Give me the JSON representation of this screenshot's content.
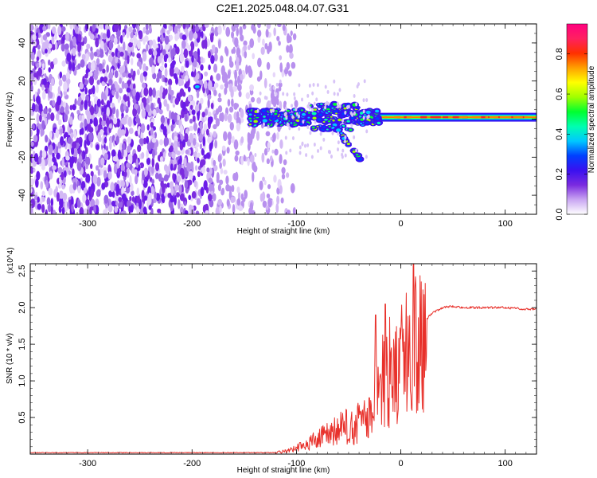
{
  "title": "C2E1.2025.048.04.07.G31",
  "chart_data": [
    {
      "type": "heatmap",
      "xlabel": "Height of straight line (km)",
      "ylabel": "Frequency (Hz)",
      "xlim": [
        -355,
        130
      ],
      "ylim": [
        -50,
        50
      ],
      "x_ticks": [
        "-300",
        "-200",
        "-100",
        "0",
        "100"
      ],
      "x_tick_values": [
        -300,
        -200,
        -100,
        0,
        100
      ],
      "y_ticks": [
        "-40",
        "-20",
        "0",
        "20",
        "40"
      ],
      "y_tick_values": [
        -40,
        -20,
        0,
        20,
        40
      ],
      "colorbar": {
        "label": "Normalized spectral amplitude",
        "range": [
          0,
          0.95
        ],
        "ticks": [
          "0.0",
          "0.2",
          "0.4",
          "0.6",
          "0.8"
        ],
        "tick_values": [
          0,
          0.2,
          0.4,
          0.6,
          0.8
        ],
        "colors": [
          "#ffffff",
          "#c9a6f2",
          "#7b2be0",
          "#3a10f0",
          "#0040ff",
          "#00c8ff",
          "#00ffb0",
          "#00ff30",
          "#a0ff00",
          "#ffff00",
          "#ffa000",
          "#ff3000",
          "#ff2060",
          "#ff0080"
        ]
      },
      "features": {
        "noise_region_x": [
          -355,
          -140
        ],
        "carrier_frequency_hz": 1,
        "carrier_x": [
          -140,
          130
        ],
        "spot_hz": 17,
        "spot_x": -195
      }
    },
    {
      "type": "line",
      "xlabel": "Height of straight line (km)",
      "ylabel": "SNR (10 * v/v)",
      "scale_note": "(x10^4)",
      "xlim": [
        -355,
        130
      ],
      "ylim": [
        0,
        2.6
      ],
      "x_ticks": [
        "-300",
        "-200",
        "-100",
        "0",
        "100"
      ],
      "x_tick_values": [
        -300,
        -200,
        -100,
        0,
        100
      ],
      "y_ticks": [
        "0.5",
        "1.0",
        "1.5",
        "2.0",
        "2.5"
      ],
      "y_tick_values": [
        0.5,
        1.0,
        1.5,
        2.0,
        2.5
      ],
      "color": "#e8302a",
      "series": [
        {
          "x": [
            -355,
            -300,
            -250,
            -200,
            -150,
            -120,
            -110,
            -100,
            -90,
            -80,
            -70,
            -60,
            -50,
            -40,
            -30,
            -25,
            -20,
            -15,
            -10,
            -5,
            0,
            5,
            10,
            15,
            20,
            25,
            30,
            40,
            50,
            60,
            70,
            80,
            90,
            100,
            110,
            120,
            130
          ],
          "values": [
            0.02,
            0.02,
            0.02,
            0.02,
            0.02,
            0.02,
            0.04,
            0.08,
            0.14,
            0.2,
            0.26,
            0.33,
            0.38,
            0.42,
            0.5,
            0.65,
            0.9,
            1.05,
            1.15,
            1.2,
            1.25,
            1.3,
            1.4,
            1.55,
            1.75,
            1.85,
            1.93,
            2.0,
            2.02,
            2.0,
            2.0,
            2.0,
            2.0,
            2.0,
            1.99,
            1.98,
            1.98
          ]
        }
      ]
    }
  ]
}
